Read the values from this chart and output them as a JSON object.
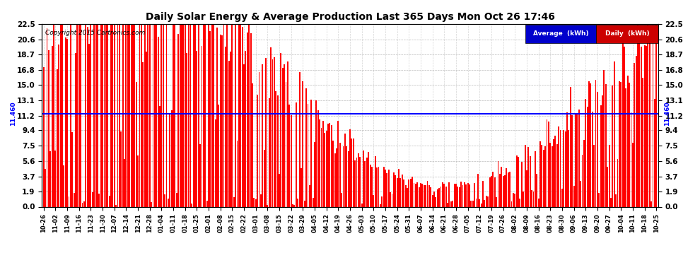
{
  "title": "Daily Solar Energy & Average Production Last 365 Days Mon Oct 26 17:46",
  "copyright": "Copyright 2015 Cartronics.com",
  "average_value": 11.46,
  "average_label": "11.460",
  "bar_color": "#ff0000",
  "average_line_color": "#0000ff",
  "background_color": "#ffffff",
  "plot_bg_color": "#ffffff",
  "yticks": [
    0.0,
    1.9,
    3.7,
    5.6,
    7.5,
    9.4,
    11.2,
    13.1,
    15.0,
    16.8,
    18.7,
    20.6,
    22.5
  ],
  "ylim": [
    0.0,
    22.5
  ],
  "legend_avg_label": "Average  (kWh)",
  "legend_daily_label": "Daily  (kWh)",
  "legend_avg_bg": "#0000cc",
  "legend_daily_bg": "#cc0000",
  "grid_color": "#aaaaaa",
  "seed": 42
}
